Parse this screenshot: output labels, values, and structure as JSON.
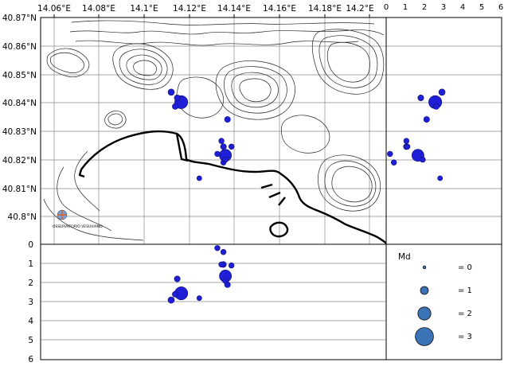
{
  "map": {
    "lon_ticks": [
      "14.06°E",
      "14.08°E",
      "14.1°E",
      "14.12°E",
      "14.14°E",
      "14.16°E",
      "14.18°E",
      "14.2°E"
    ],
    "lat_ticks": [
      "40.87°N",
      "40.86°N",
      "40.85°N",
      "40.84°N",
      "40.83°N",
      "40.82°N",
      "40.81°N",
      "40.8°N"
    ],
    "logo_text": "OSSERVATORIO VESUVIANO"
  },
  "depth_axis": {
    "ticks": [
      "0",
      "1",
      "2",
      "3",
      "4",
      "5",
      "6"
    ]
  },
  "side_axis": {
    "ticks": [
      "0",
      "1",
      "2",
      "3",
      "4",
      "5",
      "6"
    ]
  },
  "legend": {
    "title": "Md",
    "items": [
      {
        "label": "= 0",
        "md": 0
      },
      {
        "label": "= 1",
        "md": 1
      },
      {
        "label": "= 2",
        "md": 2
      },
      {
        "label": "= 3",
        "md": 3
      }
    ]
  },
  "colors": {
    "quake": "#1f1fd8",
    "legend": "#3b74b6",
    "coast": "#000000"
  },
  "chart_data": {
    "type": "scatter",
    "x_unit": "longitude (°E)",
    "y_unit": "latitude (°N)",
    "depth_unit": "km",
    "xlim": [
      14.05,
      14.222
    ],
    "ylim": [
      40.791,
      40.87
    ],
    "zlim": [
      0,
      6
    ],
    "events": [
      {
        "lon": 14.12,
        "lat": 40.8405,
        "depth": 2.55,
        "md": 2.0
      },
      {
        "lon": 14.142,
        "lat": 40.822,
        "depth": 1.65,
        "md": 1.8
      },
      {
        "lon": 14.115,
        "lat": 40.844,
        "depth": 2.9,
        "md": 0.7
      },
      {
        "lon": 14.117,
        "lat": 40.839,
        "depth": 2.6,
        "md": 0.6
      },
      {
        "lon": 14.118,
        "lat": 40.842,
        "depth": 1.8,
        "md": 0.6
      },
      {
        "lon": 14.14,
        "lat": 40.827,
        "depth": 1.05,
        "md": 0.5
      },
      {
        "lon": 14.141,
        "lat": 40.825,
        "depth": 1.05,
        "md": 0.6
      },
      {
        "lon": 14.138,
        "lat": 40.8225,
        "depth": 0.2,
        "md": 0.5
      },
      {
        "lon": 14.143,
        "lat": 40.8345,
        "depth": 2.1,
        "md": 0.6
      },
      {
        "lon": 14.145,
        "lat": 40.825,
        "depth": 1.1,
        "md": 0.5
      },
      {
        "lon": 14.141,
        "lat": 40.8195,
        "depth": 0.4,
        "md": 0.5
      },
      {
        "lon": 14.129,
        "lat": 40.814,
        "depth": 2.8,
        "md": 0.4
      },
      {
        "lon": 14.142,
        "lat": 40.8205,
        "depth": 1.9,
        "md": 0.5
      }
    ]
  }
}
